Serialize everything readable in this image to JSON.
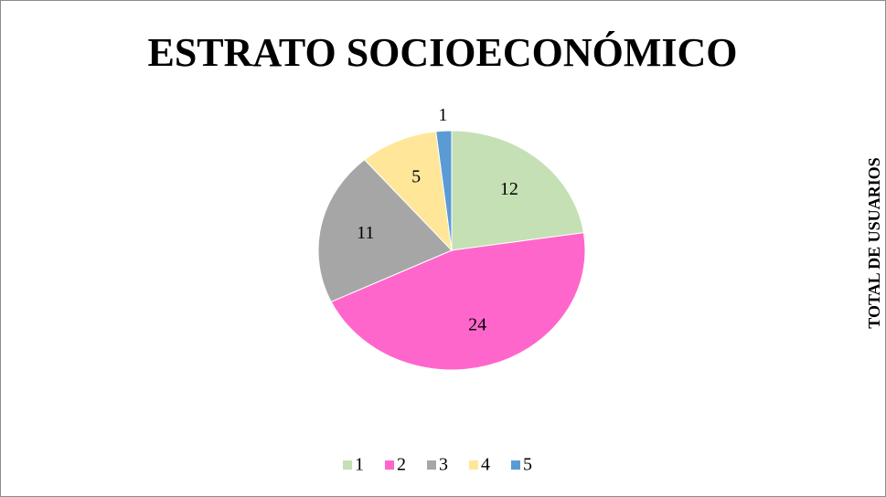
{
  "chart_data": {
    "type": "pie",
    "title": "ESTRATO SOCIOECONÓMICO",
    "series_name": "TOTAL DE USUARIOS",
    "categories": [
      "1",
      "2",
      "3",
      "4",
      "5"
    ],
    "values": [
      12,
      24,
      11,
      5,
      1
    ],
    "colors": [
      "#c5e0b4",
      "#ff66cc",
      "#a6a6a6",
      "#ffe699",
      "#5b9bd5"
    ],
    "legend": "bottom"
  }
}
